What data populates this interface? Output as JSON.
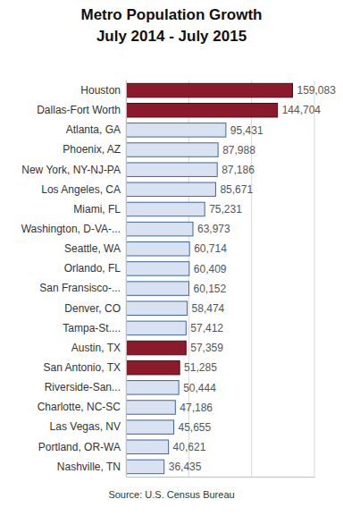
{
  "chart_data": {
    "type": "bar",
    "orientation": "horizontal",
    "title": "Metro Population Growth",
    "subtitle": "July 2014 - July 2015",
    "annotations": [
      "Source: U.S. Census Bureau"
    ],
    "categories": [
      "Houston",
      "Dallas-Fort Worth",
      "Atlanta, GA",
      "Phoenix, AZ",
      "New York, NY-NJ-PA",
      "Los Angeles, CA",
      "Miami, FL",
      "Washington, D-VA-...",
      "Seattle, WA",
      "Orlando, FL",
      "San Fransisco-...",
      "Denver, CO",
      "Tampa-St....",
      "Austin, TX",
      "San Antonio, TX",
      "Riverside-San...",
      "Charlotte, NC-SC",
      "Las Vegas, NV",
      "Portland, OR-WA",
      "Nashville, TN"
    ],
    "values": [
      159083,
      144704,
      95431,
      87988,
      87186,
      85671,
      75231,
      63973,
      60714,
      60409,
      60152,
      58474,
      57412,
      57359,
      51285,
      50444,
      47186,
      45655,
      40621,
      36435
    ],
    "value_labels": [
      "159,083",
      "144,704",
      "95,431",
      "87,988",
      "87,186",
      "85,671",
      "75,231",
      "63,973",
      "60,714",
      "60,409",
      "60,152",
      "58,474",
      "57,412",
      "57,359",
      "51,285",
      "50,444",
      "47,186",
      "45,655",
      "40,621",
      "36,435"
    ],
    "colors": [
      "#8b1a2b",
      "#8b1a2b",
      "#d9e2f0",
      "#d9e2f0",
      "#d9e2f0",
      "#d9e2f0",
      "#d9e2f0",
      "#d9e2f0",
      "#d9e2f0",
      "#d9e2f0",
      "#d9e2f0",
      "#d9e2f0",
      "#d9e2f0",
      "#8b1a2b",
      "#8b1a2b",
      "#d9e2f0",
      "#d9e2f0",
      "#d9e2f0",
      "#d9e2f0",
      "#d9e2f0"
    ],
    "xlim": [
      0,
      180000
    ],
    "xticks": [
      0,
      60000,
      120000,
      180000
    ],
    "grid": true,
    "data_labels": true,
    "tick_labels": "y"
  }
}
